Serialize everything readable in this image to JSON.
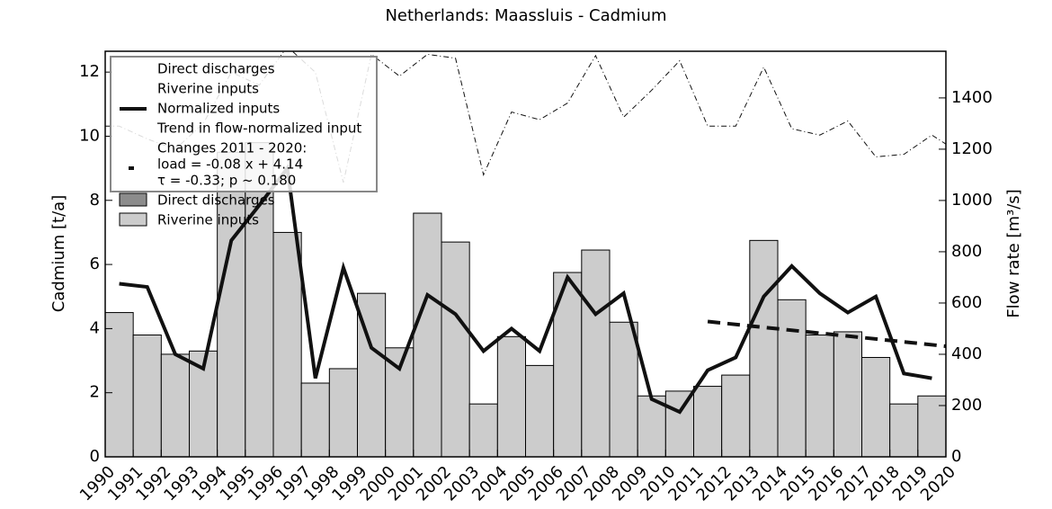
{
  "chart_data": {
    "type": "bar",
    "title": "Netherlands: Maassluis - Cadmium",
    "y_label": "Cadmium [t/a]",
    "y2_label": "Flow rate [m³/s]",
    "xlim": [
      1990,
      2020
    ],
    "xticks": [
      1990,
      1991,
      1992,
      1993,
      1994,
      1995,
      1996,
      1997,
      1998,
      1999,
      2000,
      2001,
      2002,
      2003,
      2004,
      2005,
      2006,
      2007,
      2008,
      2009,
      2010,
      2011,
      2012,
      2013,
      2014,
      2015,
      2016,
      2017,
      2018,
      2019,
      2020
    ],
    "ylim": [
      0,
      12.65
    ],
    "yticks": [
      0,
      2,
      4,
      6,
      8,
      10,
      12
    ],
    "y2lim": [
      0,
      1582
    ],
    "y2ticks": [
      0,
      200,
      400,
      600,
      800,
      1000,
      1200,
      1400
    ],
    "series": [
      {
        "name": "Direct discharges",
        "kind": "bar",
        "color": "#8c8c8c",
        "x": [
          1990,
          1991,
          1992,
          1993,
          1994,
          1995,
          1996,
          1997,
          1998,
          1999,
          2000,
          2001,
          2002,
          2003,
          2004,
          2005,
          2006,
          2007,
          2008,
          2009,
          2010,
          2011,
          2012,
          2013,
          2014,
          2015,
          2016,
          2017,
          2018,
          2019
        ],
        "values": [
          0,
          0,
          0,
          0,
          0,
          0,
          0,
          0,
          0,
          0,
          0,
          0,
          0,
          0,
          0,
          0,
          0,
          0,
          0,
          0,
          0,
          0,
          0,
          0,
          0,
          0,
          0,
          0,
          0,
          0
        ]
      },
      {
        "name": "Riverine inputs",
        "kind": "bar",
        "color": "#cccccc",
        "x": [
          1990,
          1991,
          1992,
          1993,
          1994,
          1995,
          1996,
          1997,
          1998,
          1999,
          2000,
          2001,
          2002,
          2003,
          2004,
          2005,
          2006,
          2007,
          2008,
          2009,
          2010,
          2011,
          2012,
          2013,
          2014,
          2015,
          2016,
          2017,
          2018,
          2019
        ],
        "values": [
          4.5,
          3.8,
          3.2,
          3.3,
          9.5,
          9.8,
          7.0,
          2.3,
          2.75,
          5.1,
          3.4,
          7.6,
          6.7,
          1.65,
          3.75,
          2.85,
          5.75,
          6.45,
          4.2,
          1.9,
          2.05,
          2.2,
          2.55,
          6.75,
          4.9,
          3.8,
          3.9,
          3.1,
          1.65,
          1.9
        ]
      },
      {
        "name": "Normalized inputs",
        "kind": "line",
        "color": "#111111",
        "dash": "none",
        "x": [
          1990.5,
          1991.5,
          1992.5,
          1993.5,
          1994.5,
          1995.5,
          1996.5,
          1997.5,
          1998.5,
          1999.5,
          2000.5,
          2001.5,
          2002.5,
          2003.5,
          2004.5,
          2005.5,
          2006.5,
          2007.5,
          2008.5,
          2009.5,
          2010.5,
          2011.5,
          2012.5,
          2013.5,
          2014.5,
          2015.5,
          2016.5,
          2017.5,
          2018.5,
          2019.5
        ],
        "values": [
          5.4,
          5.3,
          3.2,
          2.75,
          6.75,
          7.85,
          9.0,
          2.45,
          5.9,
          3.4,
          2.75,
          5.05,
          4.45,
          3.3,
          4.0,
          3.3,
          5.6,
          4.45,
          5.1,
          1.8,
          1.4,
          2.7,
          3.1,
          5.0,
          5.95,
          5.1,
          4.5,
          5.0,
          2.6,
          2.45
        ]
      },
      {
        "name": "Trend in flow-normalized input",
        "kind": "line",
        "color": "#111111",
        "dash": "14 8",
        "x": [
          2011.5,
          2020
        ],
        "values": [
          4.22,
          3.45
        ]
      },
      {
        "kind": "line",
        "axis": "y2",
        "color": "#111111",
        "dash": "6 3 1 3",
        "width": 1,
        "x": [
          1990,
          1990.5,
          1991.5,
          1992.5,
          1993.5,
          1994.5,
          1995.5,
          1996.5,
          1997.5,
          1998.5,
          1999.5,
          2000.5,
          2001.5,
          2002.5,
          2003.5,
          2004.5,
          2005.5,
          2006.5,
          2007.5,
          2008.5,
          2009.5,
          2010.5,
          2011.5,
          2012.5,
          2013.5,
          2014.5,
          2015.5,
          2016.5,
          2017.5,
          2018.5,
          2019.5,
          2020
        ],
        "values": [
          1290,
          1290,
          1240,
          1200,
          1300,
          1500,
          1450,
          1600,
          1500,
          1070,
          1570,
          1485,
          1570,
          1555,
          1100,
          1345,
          1315,
          1380,
          1565,
          1325,
          1430,
          1545,
          1290,
          1290,
          1520,
          1280,
          1255,
          1310,
          1170,
          1180,
          1255,
          1220
        ]
      }
    ],
    "trend_note": [
      "Changes 2011 - 2020:",
      "load = -0.08 x +  4.14",
      "τ = -0.33; p ~ 0.180"
    ],
    "legend": "upper left"
  }
}
